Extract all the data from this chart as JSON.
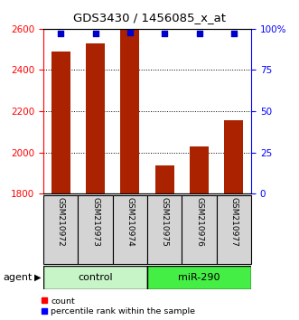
{
  "title": "GDS3430 / 1456085_x_at",
  "samples": [
    "GSM210972",
    "GSM210973",
    "GSM210974",
    "GSM210975",
    "GSM210976",
    "GSM210977"
  ],
  "counts": [
    2490,
    2530,
    2600,
    1935,
    2030,
    2155
  ],
  "percentiles": [
    97,
    97,
    98,
    97,
    97,
    97
  ],
  "group_colors": [
    "#c8f5c8",
    "#44ee44"
  ],
  "ylim_left": [
    1800,
    2600
  ],
  "ylim_right": [
    0,
    100
  ],
  "yticks_left": [
    1800,
    2000,
    2200,
    2400,
    2600
  ],
  "yticks_right": [
    0,
    25,
    50,
    75,
    100
  ],
  "bar_color": "#aa2200",
  "dot_color": "#0000cc",
  "bar_width": 0.55,
  "background_color": "#ffffff"
}
